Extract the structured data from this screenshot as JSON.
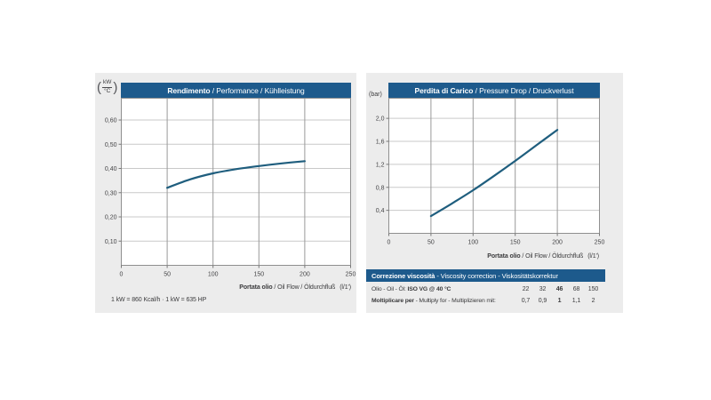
{
  "page": {
    "accent_color": "#1d5a8c",
    "curve_color": "#1f5e7e",
    "panel_bg": "#ececec",
    "grid_h_color": "#c9c9c9",
    "grid_v_color": "#9a9a9a",
    "plot_border_color": "#8f8f8f",
    "paren_open": "(",
    "paren_close": ")"
  },
  "chart_data": [
    {
      "type": "line",
      "title_bold": "Rendimento",
      "title_rest": " / Performance / Kühlleistung",
      "y_unit": "kW/°C",
      "y_unit_num": "kW",
      "y_unit_den": "°C",
      "xlabel_bold": "Portata olio",
      "xlabel_rest": " / Oil Flow / Öldurchfluß",
      "xlabel_unit": "(l/1')",
      "xlim": [
        0,
        250
      ],
      "ylim": [
        0,
        0.69
      ],
      "grid": true,
      "xticks": [
        0,
        50,
        100,
        150,
        200,
        250
      ],
      "xtick_labels": [
        "0",
        "50",
        "100",
        "150",
        "200",
        "250"
      ],
      "ytick_values": [
        0.1,
        0.2,
        0.3,
        0.4,
        0.5,
        0.6
      ],
      "ytick_labels": [
        "0,10",
        "0,20",
        "0,30",
        "0,40",
        "0,50",
        "0,60"
      ],
      "series": [
        {
          "name": "Rendimento",
          "points": [
            [
              50,
              0.32
            ],
            [
              75,
              0.355
            ],
            [
              100,
              0.38
            ],
            [
              125,
              0.397
            ],
            [
              150,
              0.41
            ],
            [
              175,
              0.421
            ],
            [
              200,
              0.43
            ]
          ]
        }
      ],
      "note": "1 kW = 860 Kcal/h · 1 kW = 635 HP"
    },
    {
      "type": "line",
      "title_bold": "Perdita di Carico",
      "title_rest": " / Pressure Drop / Druckverlust",
      "y_unit": "(bar)",
      "xlabel_bold": "Portata olio",
      "xlabel_rest": " / Oil Flow / Öldurchfluß",
      "xlabel_unit": "(l/1')",
      "xlim": [
        0,
        250
      ],
      "ylim": [
        0,
        2.35
      ],
      "grid": true,
      "xticks": [
        0,
        50,
        100,
        150,
        200,
        250
      ],
      "xtick_labels": [
        "0",
        "50",
        "100",
        "150",
        "200",
        "250"
      ],
      "ytick_values": [
        0.4,
        0.8,
        1.2,
        1.6,
        2.0
      ],
      "ytick_labels": [
        "0,4",
        "0,8",
        "1,2",
        "1,6",
        "2,0"
      ],
      "series": [
        {
          "name": "Perdita di carico",
          "points": [
            [
              50,
              0.3
            ],
            [
              75,
              0.52
            ],
            [
              100,
              0.75
            ],
            [
              125,
              1.0
            ],
            [
              150,
              1.26
            ],
            [
              175,
              1.53
            ],
            [
              200,
              1.8
            ]
          ]
        }
      ]
    }
  ],
  "viscosity_table": {
    "header_bold": "Correzione viscosità",
    "header_rest": " - Viscosity correction - Viskositätskorrektur",
    "oil_label": "Olio - Oil - Öl:",
    "oil_label_bold": " ISO VG @ 40 °C",
    "oil_values": [
      "22",
      "32",
      "46",
      "68",
      "150"
    ],
    "oil_bold_index": 2,
    "mult_label_bold": "Moltiplicare per",
    "mult_label_rest": " - Multiply for - Multiplizieren mit:",
    "mult_values": [
      "0,7",
      "0,9",
      "1",
      "1,1",
      "2"
    ],
    "mult_bold_index": 2
  }
}
